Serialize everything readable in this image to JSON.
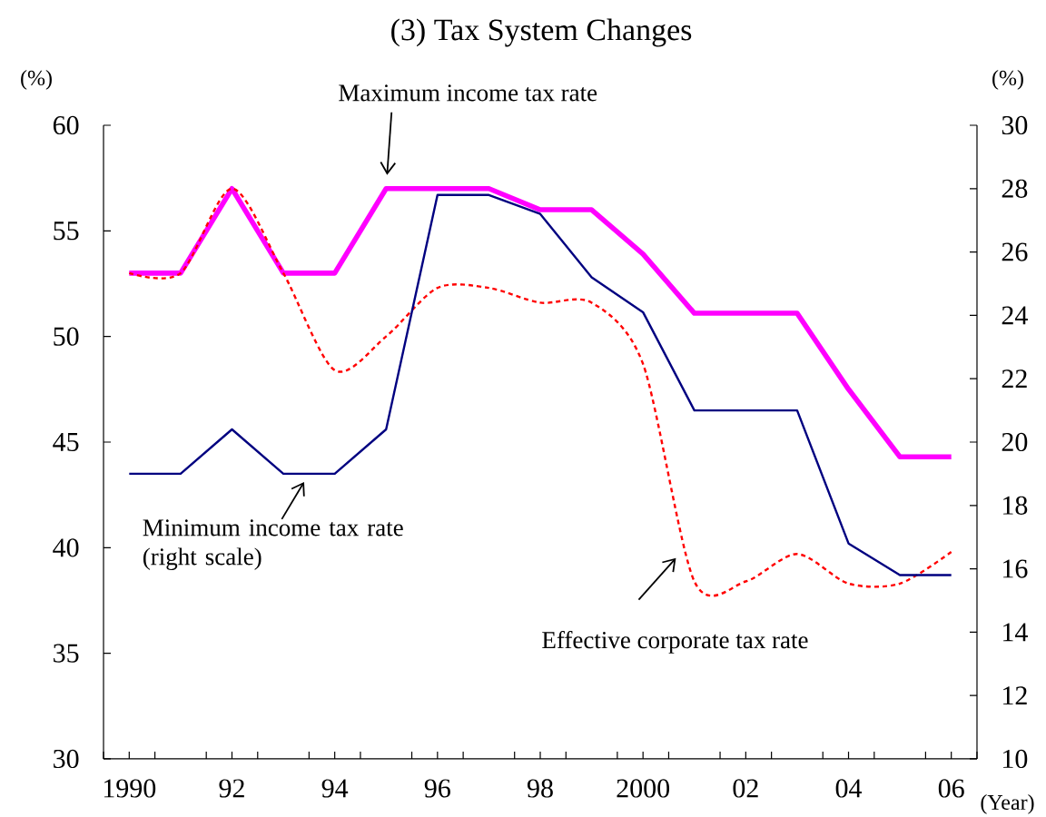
{
  "chart_data": {
    "type": "line",
    "title": "(3) Tax System Changes",
    "xlabel": "(Year)",
    "ylabel": "(%)",
    "y2label": "(%)",
    "x": [
      1990,
      1991,
      1992,
      1993,
      1994,
      1995,
      1996,
      1997,
      1998,
      1999,
      2000,
      2001,
      2002,
      2003,
      2004,
      2005,
      2006
    ],
    "xlim": [
      1989.5,
      2006.5
    ],
    "xticks": [
      1990,
      {
        "value": 1992,
        "label": "92"
      },
      {
        "value": 1994,
        "label": "94"
      },
      {
        "value": 1996,
        "label": "96"
      },
      {
        "value": 1998,
        "label": "98"
      },
      2000,
      {
        "value": 2002,
        "label": "02"
      },
      {
        "value": 2004,
        "label": "04"
      },
      {
        "value": 2006,
        "label": "06"
      },
      {
        "value": 1989.5,
        "label": null
      },
      {
        "value": 1990.5,
        "label": null
      },
      {
        "value": 1991.5,
        "label": null
      },
      {
        "value": 1992.5,
        "label": null
      },
      {
        "value": 1993.5,
        "label": null
      },
      {
        "value": 1994.5,
        "label": null
      },
      {
        "value": 1995.5,
        "label": null
      },
      {
        "value": 1996.5,
        "label": null
      },
      {
        "value": 1997.5,
        "label": null
      },
      {
        "value": 1998.5,
        "label": null
      },
      {
        "value": 1999.5,
        "label": null
      },
      {
        "value": 2000.5,
        "label": null
      },
      {
        "value": 2001.5,
        "label": null
      },
      {
        "value": 2002.5,
        "label": null
      },
      {
        "value": 2003.5,
        "label": null
      },
      {
        "value": 2004.5,
        "label": null
      },
      {
        "value": 2005.5,
        "label": null
      },
      {
        "value": 2006.5,
        "label": null
      }
    ],
    "ylim": [
      30,
      60
    ],
    "yticks": [
      30,
      35,
      40,
      45,
      50,
      55,
      60
    ],
    "y2lim": [
      10,
      30
    ],
    "y2ticks": [
      10,
      12,
      14,
      16,
      18,
      20,
      22,
      24,
      26,
      28,
      30
    ],
    "grid": false,
    "marker": "none",
    "series": [
      {
        "name": "Effective corporate tax rate",
        "color": "#ff0000",
        "line_style": "dotted",
        "values": [
          53,
          53,
          57,
          53,
          48.4,
          50,
          52.3,
          52.3,
          51.6,
          51.6,
          48.7,
          38.4,
          38.4,
          39.7,
          38.3,
          38.3,
          39.8
        ]
      },
      {
        "name": "Maximum income tax rate",
        "color": "#ff00ff",
        "line_style": "solid",
        "values": [
          53,
          53,
          57,
          53,
          53,
          57,
          57,
          57,
          56,
          56,
          53.9,
          51.1,
          51.1,
          51.1,
          47.5,
          44.3,
          44.3
        ]
      },
      {
        "name": "Minimum income tax rate (right scale)",
        "color": "#000080",
        "line_style": "solid",
        "axis": "y2",
        "values": [
          19,
          19,
          20.4,
          19,
          19,
          20.4,
          27.8,
          27.8,
          27.2,
          25.2,
          24.1,
          21,
          21,
          21,
          16.8,
          15.8,
          15.8
        ]
      }
    ]
  }
}
